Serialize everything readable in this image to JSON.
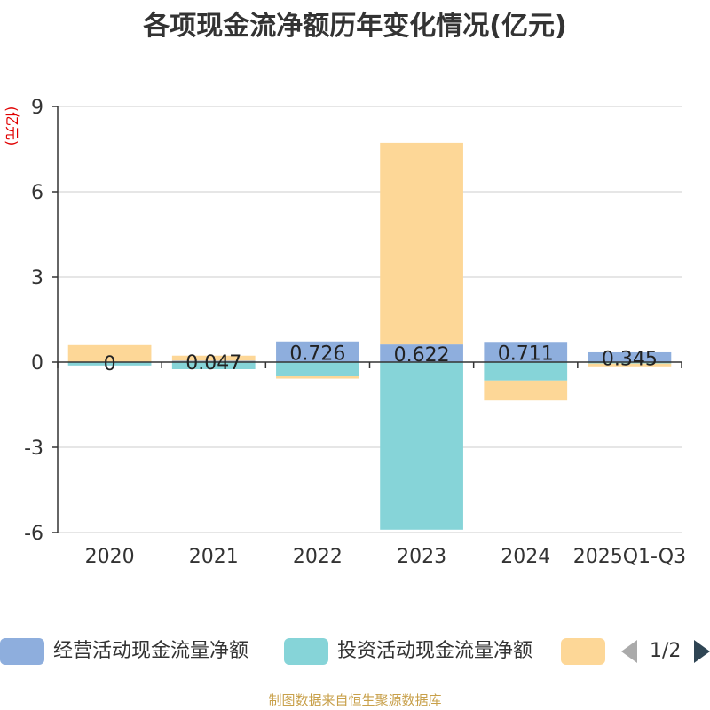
{
  "title": "各项现金流净额历年变化情况(亿元)",
  "source": "制图数据来自恒生聚源数据库",
  "legend_pager": "1/2",
  "chart_data": {
    "type": "bar",
    "stacked": true,
    "title": "各项现金流净额历年变化情况(亿元)",
    "ylabel": "(亿元)",
    "ylim": [
      -6,
      9
    ],
    "yticks": [
      9,
      6,
      3,
      0,
      -3,
      -6
    ],
    "grid": true,
    "legend_position": "bottom",
    "categories": [
      "2020",
      "2021",
      "2022",
      "2023",
      "2024",
      "2025Q1-Q3"
    ],
    "series": [
      {
        "name": "经营活动现金流量净额",
        "color": "#8eaedd",
        "values": [
          0.0,
          0.047,
          0.726,
          0.622,
          0.711,
          0.345
        ],
        "labels": [
          "0",
          "0.047",
          "0.726",
          "0.622",
          "0.711",
          "0.345"
        ]
      },
      {
        "name": "投资活动现金流量净额",
        "color": "#86d4d8",
        "values": [
          -0.12,
          -0.25,
          -0.5,
          -5.9,
          -0.65,
          -0.05
        ]
      },
      {
        "name": "",
        "color": "#fdd797",
        "values": [
          0.6,
          0.18,
          -0.08,
          7.1,
          -0.7,
          -0.1
        ]
      }
    ]
  }
}
